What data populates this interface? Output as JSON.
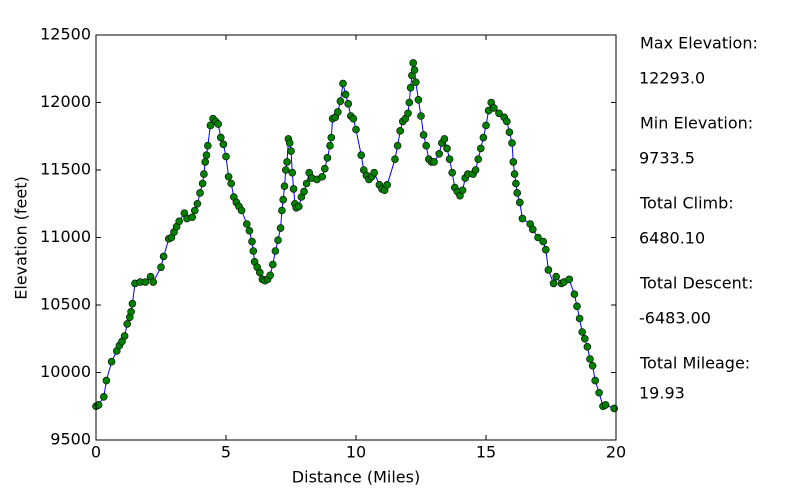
{
  "chart_data": {
    "type": "line",
    "xlabel": "Distance (Miles)",
    "ylabel": "Elevation (feet)",
    "xlim": [
      0,
      20
    ],
    "xticks": [
      0,
      5,
      10,
      15,
      20
    ],
    "ylim": [
      9500,
      12500
    ],
    "yticks": [
      9500,
      10000,
      10500,
      11000,
      11500,
      12000,
      12500
    ],
    "series": [
      {
        "color": "#0000ff",
        "marker_color": "#008000",
        "x": [
          0,
          0.1,
          0.3,
          0.4,
          0.6,
          0.8,
          0.9,
          1.0,
          1.1,
          1.2,
          1.3,
          1.35,
          1.4,
          1.5,
          1.7,
          1.9,
          2.1,
          2.2,
          2.5,
          2.6,
          2.8,
          2.9,
          3.0,
          3.1,
          3.2,
          3.4,
          3.5,
          3.7,
          3.8,
          3.9,
          4.0,
          4.1,
          4.15,
          4.2,
          4.25,
          4.3,
          4.4,
          4.5,
          4.6,
          4.7,
          4.8,
          4.9,
          5.0,
          5.1,
          5.2,
          5.3,
          5.4,
          5.5,
          5.6,
          5.8,
          5.9,
          6.0,
          6.05,
          6.1,
          6.2,
          6.3,
          6.4,
          6.5,
          6.6,
          6.7,
          6.8,
          6.9,
          7.0,
          7.1,
          7.15,
          7.2,
          7.25,
          7.3,
          7.35,
          7.4,
          7.45,
          7.5,
          7.55,
          7.6,
          7.65,
          7.7,
          7.8,
          7.9,
          8.0,
          8.1,
          8.2,
          8.3,
          8.5,
          8.7,
          8.8,
          8.9,
          9.0,
          9.05,
          9.1,
          9.2,
          9.3,
          9.4,
          9.5,
          9.6,
          9.7,
          9.8,
          9.9,
          10.0,
          10.2,
          10.3,
          10.4,
          10.5,
          10.6,
          10.7,
          10.9,
          11.0,
          11.1,
          11.2,
          11.5,
          11.6,
          11.7,
          11.8,
          11.9,
          12.0,
          12.05,
          12.1,
          12.15,
          12.2,
          12.25,
          12.3,
          12.4,
          12.5,
          12.6,
          12.7,
          12.8,
          12.9,
          13.0,
          13.2,
          13.3,
          13.4,
          13.5,
          13.6,
          13.7,
          13.8,
          13.9,
          14.0,
          14.1,
          14.2,
          14.3,
          14.5,
          14.6,
          14.7,
          14.8,
          14.9,
          15.0,
          15.1,
          15.2,
          15.3,
          15.5,
          15.7,
          15.8,
          15.9,
          16.0,
          16.05,
          16.1,
          16.15,
          16.2,
          16.3,
          16.4,
          16.7,
          16.8,
          17.0,
          17.2,
          17.3,
          17.4,
          17.6,
          17.7,
          17.9,
          18.0,
          18.2,
          18.4,
          18.5,
          18.6,
          18.7,
          18.8,
          18.9,
          19.0,
          19.1,
          19.2,
          19.35,
          19.5,
          19.6,
          19.93
        ],
        "values": [
          9750,
          9760,
          9820,
          9940,
          10080,
          10160,
          10200,
          10230,
          10270,
          10360,
          10410,
          10450,
          10510,
          10660,
          10670,
          10670,
          10710,
          10670,
          10780,
          10860,
          10990,
          11000,
          11040,
          11080,
          11120,
          11180,
          11140,
          11150,
          11200,
          11250,
          11330,
          11400,
          11470,
          11560,
          11610,
          11680,
          11830,
          11880,
          11860,
          11840,
          11740,
          11690,
          11600,
          11450,
          11400,
          11300,
          11260,
          11230,
          11200,
          11100,
          11050,
          10970,
          10900,
          10820,
          10780,
          10740,
          10690,
          10680,
          10690,
          10720,
          10800,
          10900,
          10980,
          11070,
          11200,
          11280,
          11380,
          11500,
          11560,
          11730,
          11700,
          11640,
          11480,
          11360,
          11250,
          11220,
          11230,
          11300,
          11340,
          11400,
          11480,
          11440,
          11430,
          11450,
          11510,
          11590,
          11680,
          11740,
          11880,
          11890,
          11930,
          12010,
          12140,
          12060,
          11990,
          11900,
          11880,
          11800,
          11610,
          11500,
          11460,
          11430,
          11450,
          11480,
          11390,
          11360,
          11350,
          11390,
          11580,
          11680,
          11790,
          11860,
          11880,
          11920,
          12000,
          12110,
          12200,
          12293,
          12240,
          12150,
          12020,
          11900,
          11760,
          11680,
          11580,
          11560,
          11560,
          11620,
          11700,
          11730,
          11660,
          11580,
          11480,
          11370,
          11340,
          11310,
          11350,
          11440,
          11470,
          11470,
          11500,
          11580,
          11660,
          11740,
          11830,
          11940,
          12000,
          11960,
          11920,
          11890,
          11860,
          11780,
          11700,
          11560,
          11470,
          11400,
          11330,
          11260,
          11140,
          11100,
          11060,
          11000,
          10970,
          10910,
          10760,
          10660,
          10710,
          10660,
          10670,
          10690,
          10580,
          10490,
          10400,
          10300,
          10250,
          10190,
          10100,
          10050,
          9940,
          9850,
          9750,
          9760,
          9733.5
        ]
      }
    ]
  },
  "stats": [
    {
      "label": "Max Elevation:",
      "value": "12293.0"
    },
    {
      "label": "Min Elevation:",
      "value": "9733.5"
    },
    {
      "label": "Total Climb:",
      "value": "6480.10"
    },
    {
      "label": "Total Descent:",
      "value": "-6483.00"
    },
    {
      "label": "Total Mileage:",
      "value": "19.93"
    }
  ]
}
